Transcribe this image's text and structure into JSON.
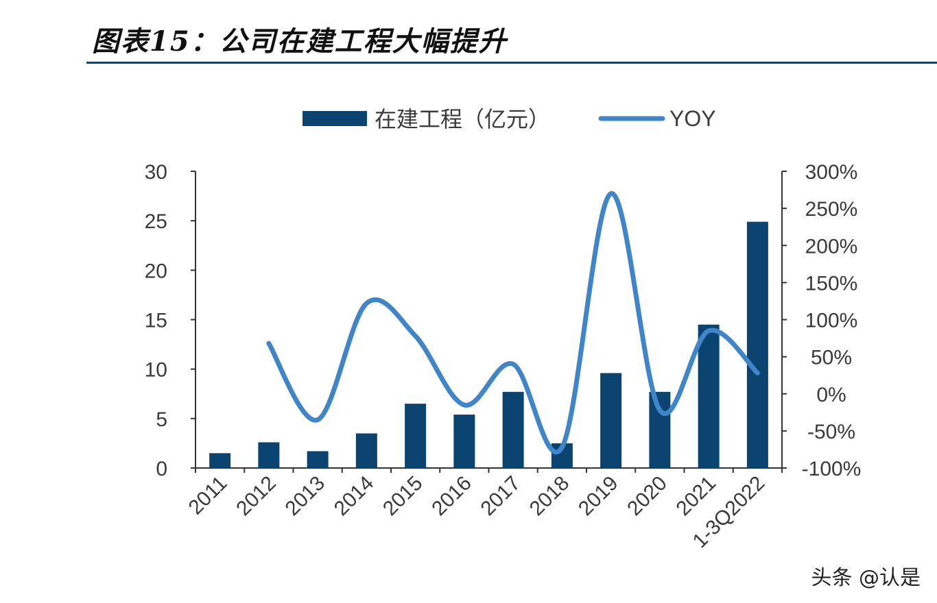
{
  "figure_title": "图表15：公司在建工程大幅提升",
  "watermark": "头条 @认是",
  "colors": {
    "bar": "#0b4470",
    "line": "#3f85c8",
    "axis": "#333333",
    "rule": "#1f3f5f"
  },
  "chart_data": {
    "type": "bar+line",
    "title": "图表15：公司在建工程大幅提升",
    "categories": [
      "2011",
      "2012",
      "2013",
      "2014",
      "2015",
      "2016",
      "2017",
      "2018",
      "2019",
      "2020",
      "2021",
      "1-3Q2022"
    ],
    "series": [
      {
        "name": "在建工程（亿元）",
        "type": "bar",
        "axis": "left",
        "values": [
          1.5,
          2.6,
          1.7,
          3.5,
          6.5,
          5.4,
          7.7,
          2.5,
          9.6,
          7.7,
          14.5,
          24.9
        ]
      },
      {
        "name": "YOY",
        "type": "line",
        "axis": "right",
        "unit": "%",
        "values": [
          null,
          68,
          -35,
          122,
          78,
          -15,
          40,
          -72,
          270,
          -22,
          85,
          28
        ]
      }
    ],
    "left_axis": {
      "min": 0,
      "max": 30,
      "step": 5,
      "ticks": [
        "0",
        "5",
        "10",
        "15",
        "20",
        "25",
        "30"
      ]
    },
    "right_axis": {
      "min": -100,
      "max": 300,
      "step": 50,
      "ticks": [
        "-100%",
        "-50%",
        "0%",
        "50%",
        "100%",
        "150%",
        "200%",
        "250%",
        "300%"
      ]
    },
    "legend": [
      "在建工程（亿元）",
      "YOY"
    ],
    "legend_position": "top",
    "grid": false
  }
}
